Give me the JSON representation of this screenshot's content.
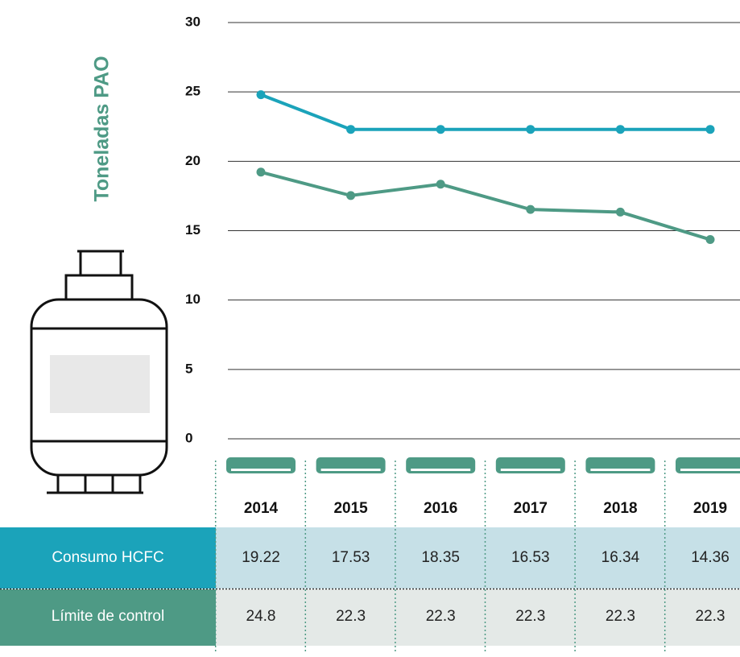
{
  "chart_data": {
    "type": "line",
    "ylabel": "Toneladas PAO",
    "categories": [
      "2014",
      "2015",
      "2016",
      "2017",
      "2018",
      "2019"
    ],
    "series": [
      {
        "name": "Consumo HCFC",
        "color": "#4e9a85",
        "values": [
          19.22,
          17.53,
          18.35,
          16.53,
          16.34,
          14.36
        ]
      },
      {
        "name": "Límite de control",
        "color": "#1ba3ba",
        "values": [
          24.8,
          22.3,
          22.3,
          22.3,
          22.3,
          22.3
        ]
      }
    ],
    "ylim": [
      0,
      30
    ],
    "yticks": [
      0,
      5,
      10,
      15,
      20,
      25,
      30
    ],
    "grid": true
  }
}
